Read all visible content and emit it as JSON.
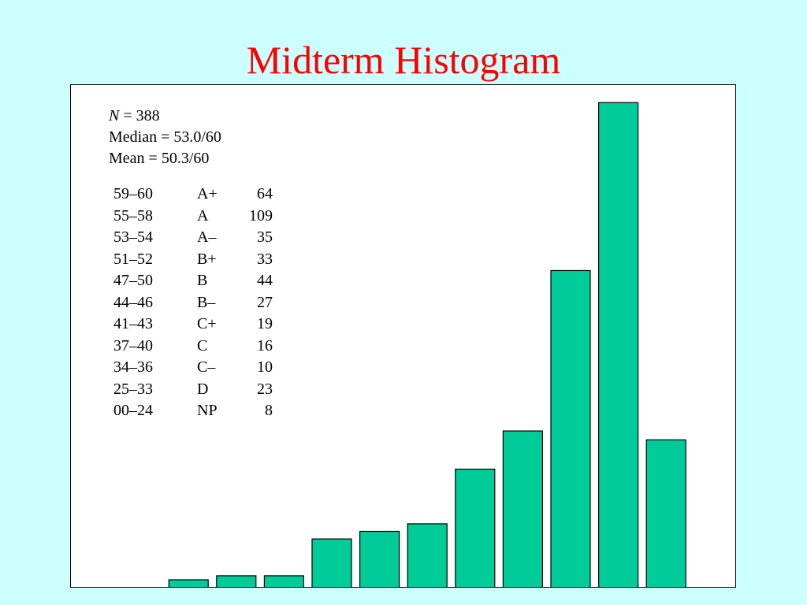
{
  "title": "Midterm Histogram",
  "stats": {
    "n_label": "N",
    "n_value": " = 388",
    "median": "Median = 53.0/60",
    "mean": "Mean = 50.3/60"
  },
  "grade_table": [
    {
      "range": "59–60",
      "grade": "A+",
      "count": "64"
    },
    {
      "range": "55–58",
      "grade": "A",
      "count": "109"
    },
    {
      "range": "53–54",
      "grade": "A–",
      "count": "35"
    },
    {
      "range": "51–52",
      "grade": "B+",
      "count": "33"
    },
    {
      "range": "47–50",
      "grade": "B",
      "count": "44"
    },
    {
      "range": "44–46",
      "grade": "B–",
      "count": "27"
    },
    {
      "range": "41–43",
      "grade": "C+",
      "count": "19"
    },
    {
      "range": "37–40",
      "grade": "C",
      "count": "16"
    },
    {
      "range": "34–36",
      "grade": "C–",
      "count": "10"
    },
    {
      "range": "25–33",
      "grade": "D",
      "count": "23"
    },
    {
      "range": "00–24",
      "grade": "NP",
      "count": "8"
    }
  ],
  "colors": {
    "background": "#ccffff",
    "title": "#ff0000",
    "bar_fill": "#00cc99",
    "bar_stroke": "#000000"
  },
  "chart_data": {
    "type": "bar",
    "values": [
      0,
      0,
      1.6,
      2.5,
      2.5,
      10.8,
      12.5,
      14.2,
      26.5,
      35.1,
      71.2,
      109,
      33.1
    ],
    "ylim": [
      0,
      111
    ],
    "grid": false
  }
}
